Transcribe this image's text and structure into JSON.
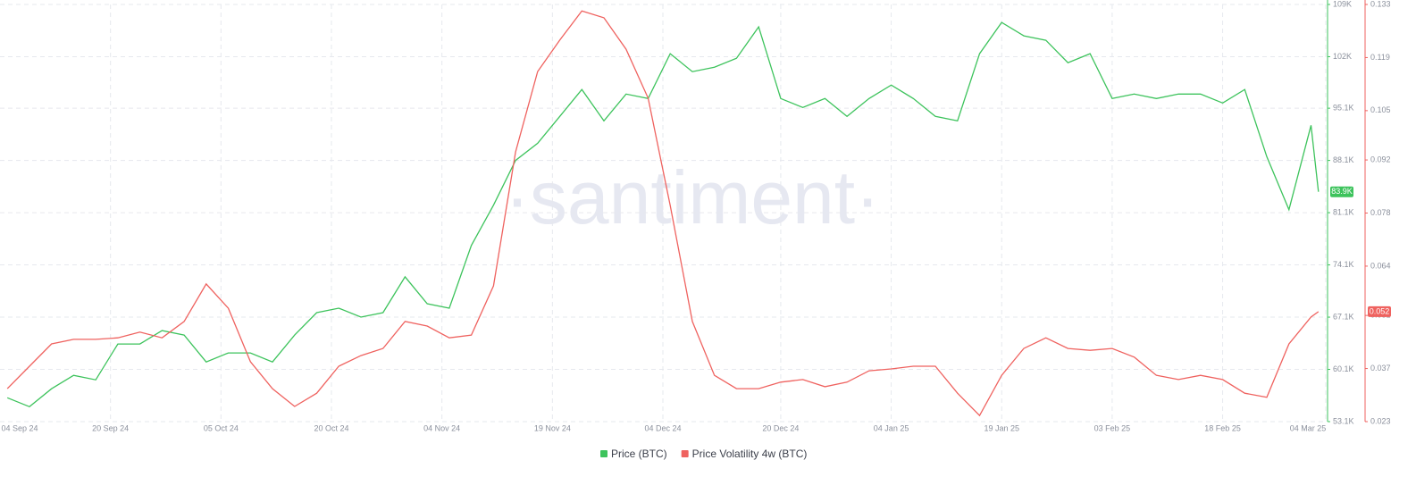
{
  "chart_data": {
    "type": "line",
    "watermark": "·santiment·",
    "x": [
      "2024-09-06",
      "2024-09-09",
      "2024-09-12",
      "2024-09-15",
      "2024-09-18",
      "2024-09-21",
      "2024-09-24",
      "2024-09-27",
      "2024-09-30",
      "2024-10-03",
      "2024-10-06",
      "2024-10-09",
      "2024-10-12",
      "2024-10-15",
      "2024-10-18",
      "2024-10-21",
      "2024-10-24",
      "2024-10-27",
      "2024-10-30",
      "2024-11-02",
      "2024-11-05",
      "2024-11-08",
      "2024-11-11",
      "2024-11-14",
      "2024-11-17",
      "2024-11-20",
      "2024-11-23",
      "2024-11-26",
      "2024-11-29",
      "2024-12-02",
      "2024-12-05",
      "2024-12-08",
      "2024-12-11",
      "2024-12-14",
      "2024-12-17",
      "2024-12-20",
      "2024-12-23",
      "2024-12-26",
      "2024-12-29",
      "2025-01-01",
      "2025-01-04",
      "2025-01-07",
      "2025-01-10",
      "2025-01-13",
      "2025-01-16",
      "2025-01-19",
      "2025-01-22",
      "2025-01-25",
      "2025-01-28",
      "2025-01-31",
      "2025-02-03",
      "2025-02-06",
      "2025-02-09",
      "2025-02-12",
      "2025-02-15",
      "2025-02-18",
      "2025-02-21",
      "2025-02-24",
      "2025-02-27",
      "2025-03-02",
      "2025-03-03"
    ],
    "xlim": [
      "2024-09-05",
      "2025-03-04"
    ],
    "xticks": [
      {
        "value": "2024-09-04",
        "label": "04 Sep 24"
      },
      {
        "value": "2024-09-20",
        "label": "20 Sep 24"
      },
      {
        "value": "2024-10-05",
        "label": "05 Oct 24"
      },
      {
        "value": "2024-10-20",
        "label": "20 Oct 24"
      },
      {
        "value": "2024-11-04",
        "label": "04 Nov 24"
      },
      {
        "value": "2024-11-19",
        "label": "19 Nov 24"
      },
      {
        "value": "2024-12-04",
        "label": "04 Dec 24"
      },
      {
        "value": "2024-12-20",
        "label": "20 Dec 24"
      },
      {
        "value": "2025-01-04",
        "label": "04 Jan 25"
      },
      {
        "value": "2025-01-19",
        "label": "19 Jan 25"
      },
      {
        "value": "2025-02-03",
        "label": "03 Feb 25"
      },
      {
        "value": "2025-02-18",
        "label": "18 Feb 25"
      },
      {
        "value": "2025-03-04",
        "label": "04 Mar 25"
      }
    ],
    "ylim": [
      53100,
      109000
    ],
    "yticks": [
      {
        "value": 53100,
        "label": "53.1K"
      },
      {
        "value": 60100,
        "label": "60.1K"
      },
      {
        "value": 67100,
        "label": "67.1K"
      },
      {
        "value": 74100,
        "label": "74.1K"
      },
      {
        "value": 81100,
        "label": "81.1K"
      },
      {
        "value": 88100,
        "label": "88.1K"
      },
      {
        "value": 95100,
        "label": "95.1K"
      },
      {
        "value": 102000,
        "label": "102K"
      },
      {
        "value": 109000,
        "label": "109K"
      }
    ],
    "y2lim": [
      0.023,
      0.133
    ],
    "y2ticks": [
      0.023,
      0.037,
      0.051,
      0.064,
      0.078,
      0.092,
      0.105,
      0.119,
      0.133
    ],
    "grid": true,
    "series": [
      {
        "name": "Price (BTC)",
        "color": "#3dc35c",
        "current_label": "83.9K",
        "values": [
          56300,
          55100,
          57500,
          59300,
          58700,
          63500,
          63500,
          65300,
          64700,
          61100,
          62300,
          62300,
          61100,
          64700,
          67700,
          68300,
          67100,
          67700,
          72500,
          68900,
          68300,
          76700,
          82100,
          88100,
          90400,
          94000,
          97600,
          93400,
          97000,
          96400,
          102400,
          100000,
          100600,
          101800,
          106000,
          96400,
          95200,
          96400,
          94000,
          96400,
          98200,
          96400,
          94000,
          93400,
          102400,
          106600,
          104800,
          104200,
          101200,
          102400,
          96400,
          97000,
          96400,
          97000,
          97000,
          95800,
          97600,
          88600,
          81500,
          92800,
          83900
        ]
      },
      {
        "name": "Price Volatility 4w (BTC)",
        "color": "#ef625f",
        "axis": "y2",
        "current_label": "0.052",
        "values": [
          0.0317,
          0.0376,
          0.0435,
          0.0447,
          0.0447,
          0.0451,
          0.0466,
          0.0451,
          0.0494,
          0.0593,
          0.0529,
          0.0388,
          0.0317,
          0.027,
          0.0305,
          0.0376,
          0.0404,
          0.0423,
          0.0494,
          0.0482,
          0.0451,
          0.0458,
          0.0588,
          0.0941,
          0.1153,
          0.1236,
          0.1313,
          0.1295,
          0.1212,
          0.1083,
          0.08,
          0.0494,
          0.0352,
          0.0317,
          0.0317,
          0.0334,
          0.0341,
          0.0322,
          0.0334,
          0.0364,
          0.0369,
          0.0376,
          0.0376,
          0.0305,
          0.0246,
          0.0352,
          0.0423,
          0.0451,
          0.0423,
          0.0418,
          0.0423,
          0.04,
          0.0352,
          0.0341,
          0.0352,
          0.0341,
          0.0305,
          0.0294,
          0.0435,
          0.0506,
          0.052
        ]
      }
    ]
  }
}
